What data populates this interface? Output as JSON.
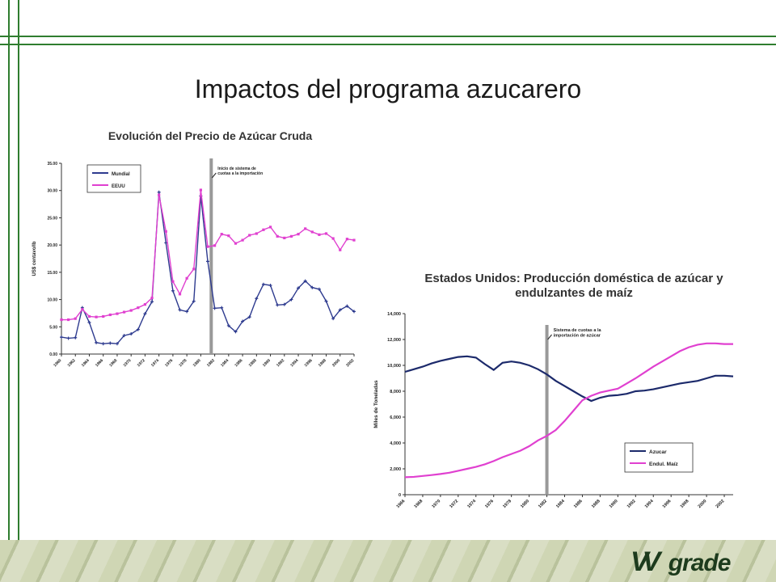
{
  "slide": {
    "title": "Impactos del programa azucarero"
  },
  "brand": {
    "logo_text": "grade",
    "frame_color": "#2f7d2f"
  },
  "chart_data": [
    {
      "type": "line",
      "title": "Evolución del Precio de Azúcar Cruda",
      "ylabel": "US$ centavo/lb",
      "xlabel": "",
      "ylim": [
        0,
        35
      ],
      "yticks": [
        "0.00",
        "5.00",
        "10.00",
        "15.00",
        "20.00",
        "25.00",
        "30.00",
        "35.00"
      ],
      "xticks": [
        "1960",
        "1962",
        "1964",
        "1966",
        "1968",
        "1970",
        "1972",
        "1974",
        "1976",
        "1978",
        "1980",
        "1982",
        "1984",
        "1986",
        "1988",
        "1990",
        "1992",
        "1994",
        "1996",
        "1998",
        "2000",
        "2002"
      ],
      "x": [
        1960,
        1961,
        1962,
        1963,
        1964,
        1965,
        1966,
        1967,
        1968,
        1969,
        1970,
        1971,
        1972,
        1973,
        1974,
        1975,
        1976,
        1977,
        1978,
        1979,
        1980,
        1981,
        1982,
        1983,
        1984,
        1985,
        1986,
        1987,
        1988,
        1989,
        1990,
        1991,
        1992,
        1993,
        1994,
        1995,
        1996,
        1997,
        1998,
        1999,
        2000,
        2001,
        2002
      ],
      "legend": "top-left",
      "vline": {
        "x": 1981.5,
        "label": "Inicio de sistema de cuotas a la importación",
        "color": "#999999"
      },
      "series": [
        {
          "name": "Mundial",
          "color": "#2e3b8f",
          "values": [
            3.1,
            2.9,
            3.0,
            8.5,
            5.8,
            2.1,
            1.9,
            2.0,
            1.9,
            3.4,
            3.7,
            4.5,
            7.4,
            9.6,
            29.7,
            20.4,
            11.6,
            8.1,
            7.8,
            9.7,
            29.0,
            17.0,
            8.4,
            8.5,
            5.2,
            4.1,
            6.0,
            6.8,
            10.2,
            12.8,
            12.6,
            9.0,
            9.1,
            10.0,
            12.1,
            13.4,
            12.2,
            11.9,
            9.7,
            6.5,
            8.1,
            8.8,
            7.8
          ]
        },
        {
          "name": "EEUU",
          "color": "#e040d0",
          "values": [
            6.3,
            6.3,
            6.5,
            8.2,
            6.9,
            6.8,
            6.9,
            7.2,
            7.4,
            7.7,
            8.0,
            8.5,
            9.1,
            10.3,
            29.2,
            22.5,
            13.3,
            11.0,
            13.9,
            15.6,
            30.1,
            19.7,
            19.9,
            22.0,
            21.7,
            20.3,
            20.9,
            21.8,
            22.1,
            22.8,
            23.3,
            21.6,
            21.3,
            21.6,
            22.0,
            23.0,
            22.4,
            21.9,
            22.1,
            21.2,
            19.1,
            21.1,
            20.9
          ]
        }
      ]
    },
    {
      "type": "line",
      "title": "Estados Unidos: Producción doméstica de azúcar y endulzantes de maíz",
      "ylabel": "Miles de Toneladas",
      "xlabel": "",
      "ylim": [
        0,
        14000
      ],
      "yticks": [
        "0",
        "2,000",
        "4,000",
        "6,000",
        "8,000",
        "10,000",
        "12,000",
        "14,000"
      ],
      "xticks": [
        "1966",
        "1968",
        "1970",
        "1972",
        "1974",
        "1976",
        "1978",
        "1980",
        "1982",
        "1984",
        "1986",
        "1988",
        "1990",
        "1992",
        "1994",
        "1996",
        "1998",
        "2000",
        "2002"
      ],
      "x": [
        1966,
        1967,
        1968,
        1969,
        1970,
        1971,
        1972,
        1973,
        1974,
        1975,
        1976,
        1977,
        1978,
        1979,
        1980,
        1981,
        1982,
        1983,
        1984,
        1985,
        1986,
        1987,
        1988,
        1989,
        1990,
        1991,
        1992,
        1993,
        1994,
        1995,
        1996,
        1997,
        1998,
        1999,
        2000,
        2001,
        2002,
        2003
      ],
      "legend": "bottom-right",
      "vline": {
        "x": 1982,
        "label": "Sistema de cuotas a la importación de azúcar",
        "color": "#999999"
      },
      "series": [
        {
          "name": "Azucar",
          "color": "#1c2a6b",
          "values": [
            9500,
            9700,
            9900,
            10150,
            10350,
            10500,
            10650,
            10700,
            10600,
            10100,
            9650,
            10200,
            10300,
            10200,
            10000,
            9700,
            9300,
            8800,
            8400,
            8000,
            7600,
            7250,
            7500,
            7650,
            7700,
            7800,
            8000,
            8050,
            8150,
            8300,
            8450,
            8600,
            8700,
            8800,
            9000,
            9200,
            9200,
            9150
          ]
        },
        {
          "name": "Endul. Maíz",
          "color": "#e040d0",
          "values": [
            1350,
            1380,
            1450,
            1520,
            1600,
            1700,
            1850,
            2000,
            2150,
            2350,
            2600,
            2900,
            3150,
            3400,
            3750,
            4200,
            4550,
            5000,
            5700,
            6500,
            7300,
            7650,
            7900,
            8050,
            8200,
            8600,
            9000,
            9450,
            9900,
            10300,
            10700,
            11100,
            11400,
            11600,
            11700,
            11700,
            11650,
            11650
          ]
        }
      ]
    }
  ]
}
